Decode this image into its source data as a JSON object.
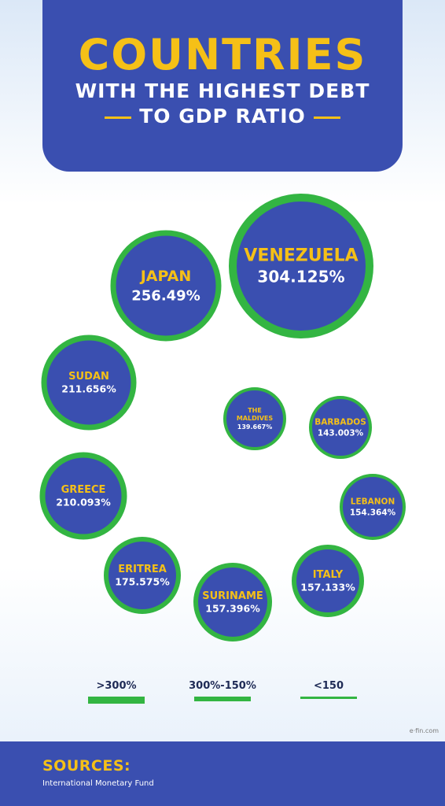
{
  "header": {
    "title": "COUNTRIES",
    "subtitle_line1": "WITH THE HIGHEST DEBT",
    "subtitle_line2": "TO GDP RATIO"
  },
  "chart_data": {
    "type": "bubble",
    "unit": "%",
    "points": [
      {
        "name": "VENEZUELA",
        "value": 304.125,
        "label": "304.125%"
      },
      {
        "name": "JAPAN",
        "value": 256.49,
        "label": "256.49%"
      },
      {
        "name": "SUDAN",
        "value": 211.656,
        "label": "211.656%"
      },
      {
        "name": "GREECE",
        "value": 210.093,
        "label": "210.093%"
      },
      {
        "name": "ERITREA",
        "value": 175.575,
        "label": "175.575%"
      },
      {
        "name": "SURINAME",
        "value": 157.396,
        "label": "157.396%"
      },
      {
        "name": "ITALY",
        "value": 157.133,
        "label": "157.133%"
      },
      {
        "name": "LEBANON",
        "value": 154.364,
        "label": "154.364%"
      },
      {
        "name": "BARBADOS",
        "value": 143.003,
        "label": "143.003%"
      },
      {
        "name": "THE MALDIVES",
        "value": 139.667,
        "label": "139.667%"
      }
    ],
    "legend": [
      {
        "label": ">300%",
        "category": "thick"
      },
      {
        "label": "300%-150%",
        "category": "medium"
      },
      {
        "label": "<150",
        "category": "thin"
      }
    ],
    "colors": {
      "fill": "#3a4fb0",
      "ring": "#33b542",
      "name": "#f5c017",
      "value": "#ffffff"
    }
  },
  "sources": {
    "title": "SOURCES:",
    "text": "International Monetary Fund"
  },
  "watermark": "e·fin.com"
}
